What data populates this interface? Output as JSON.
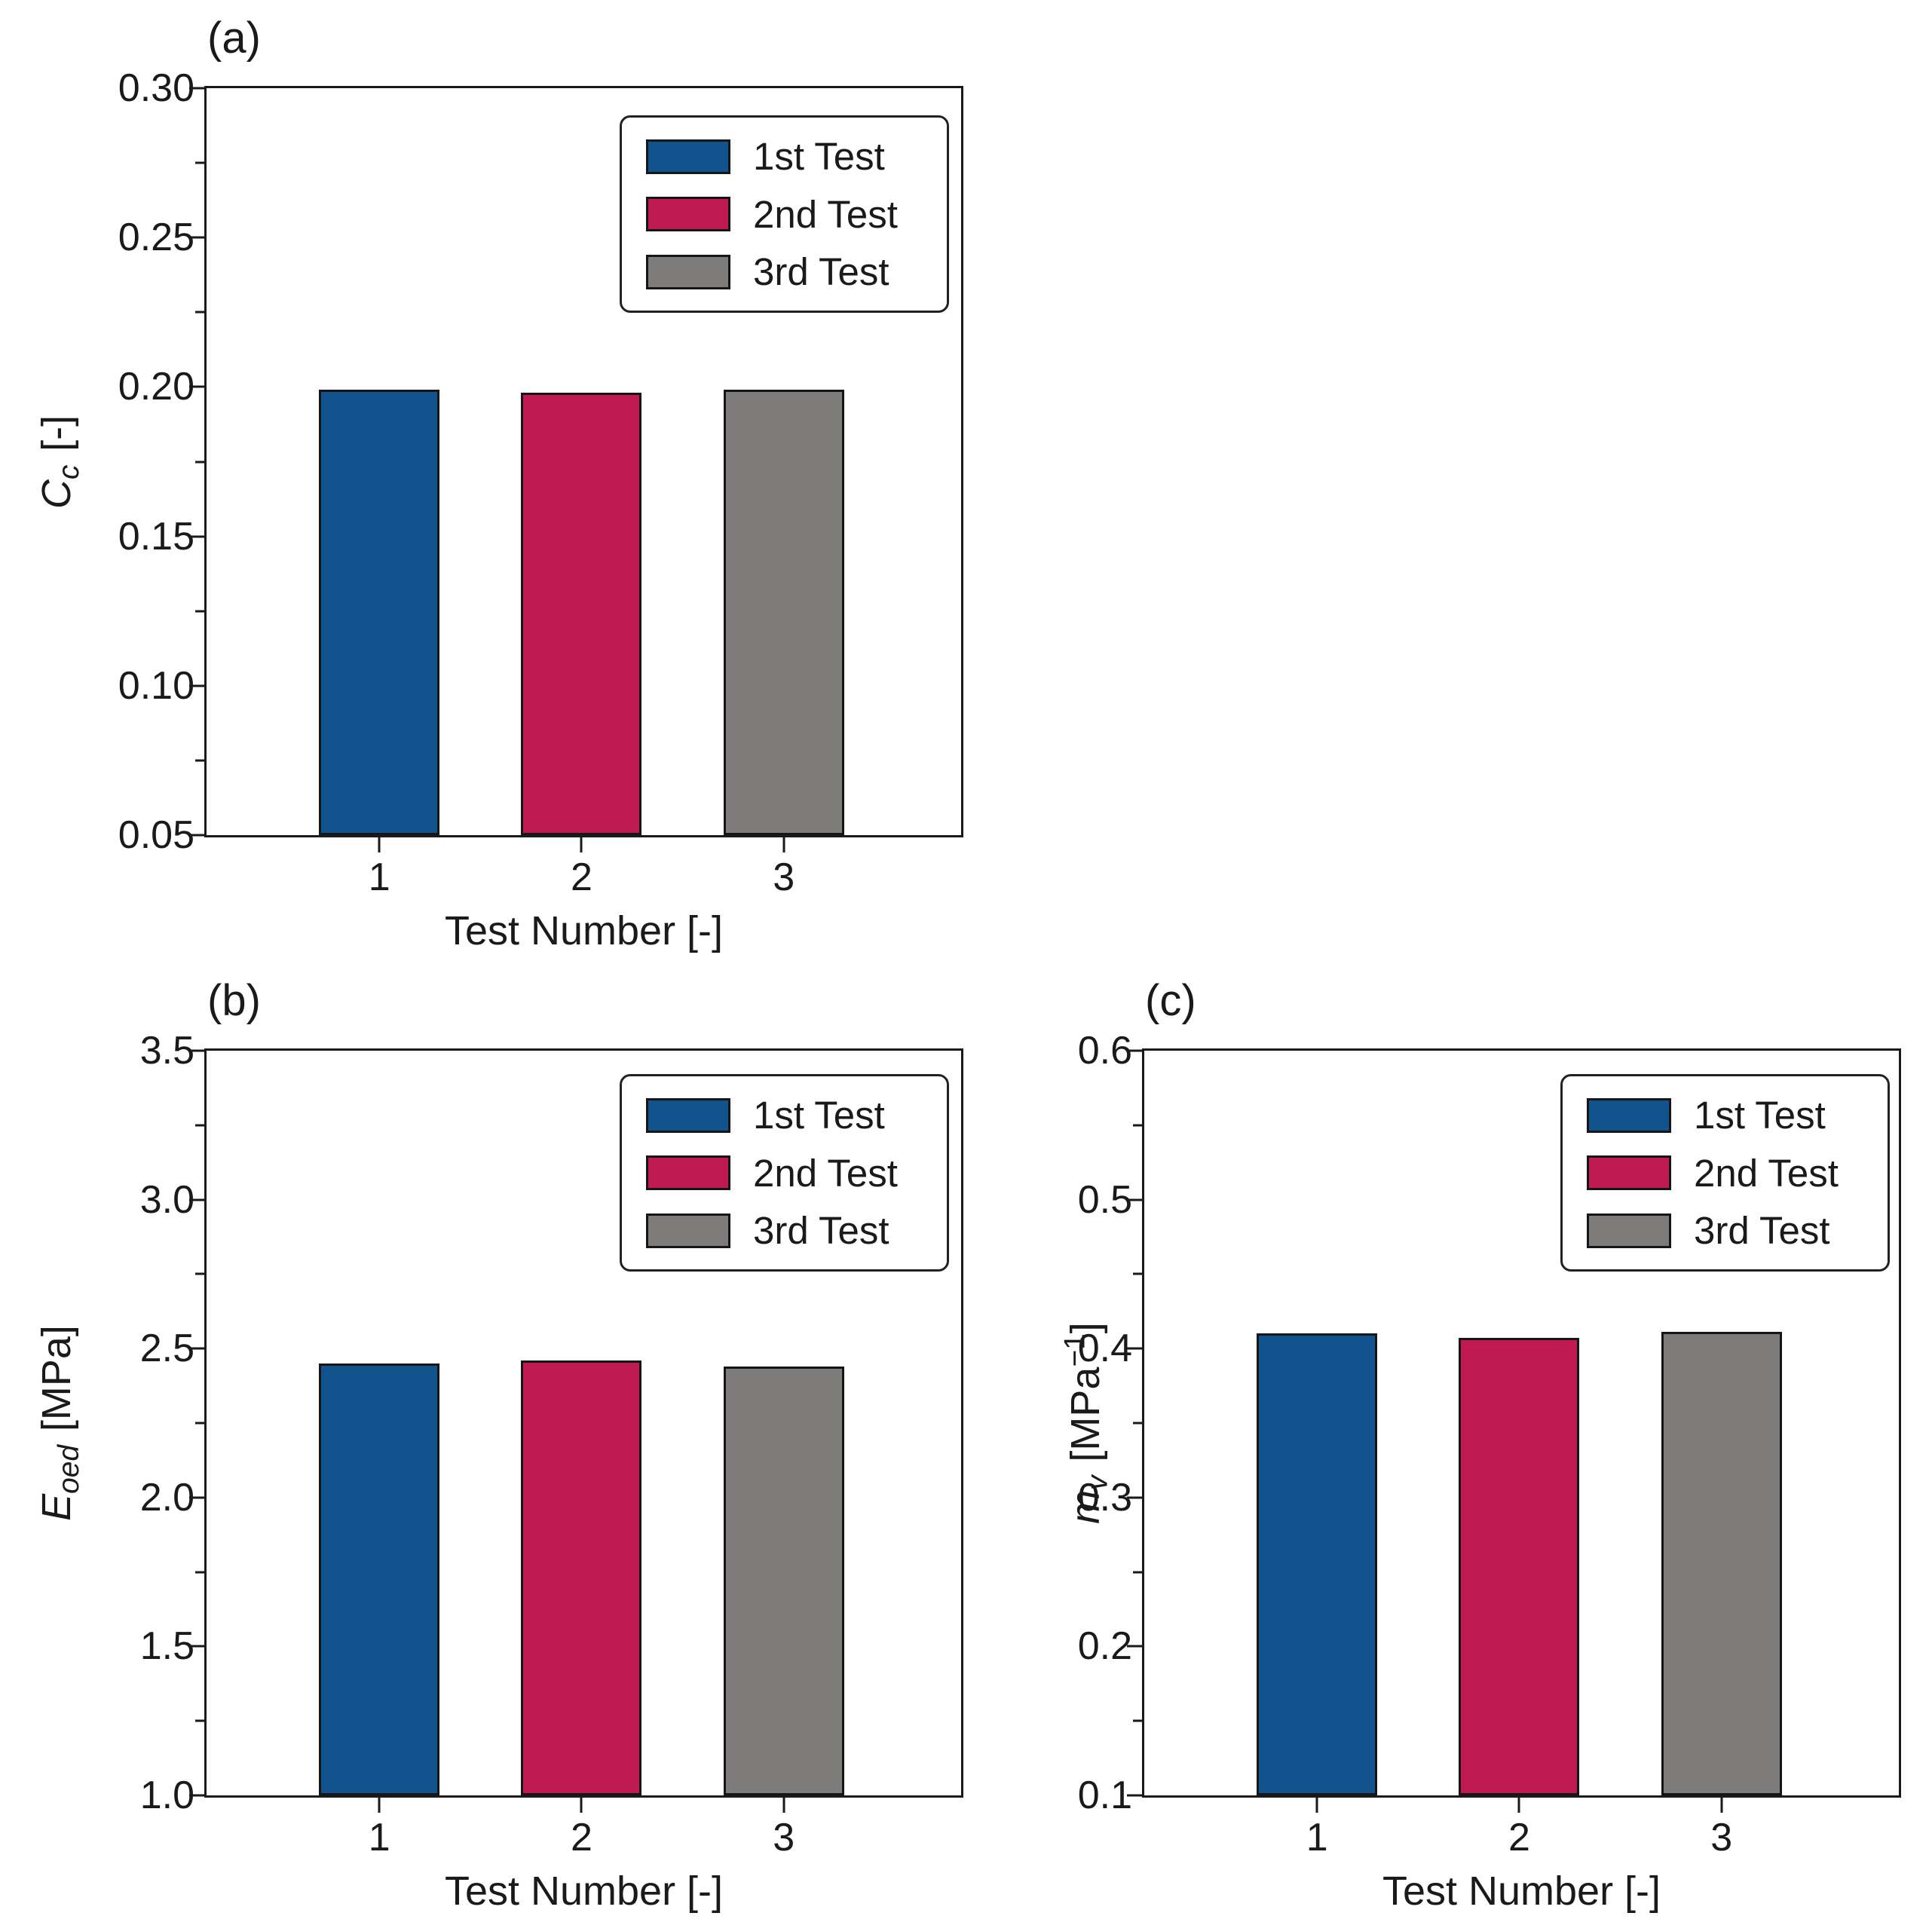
{
  "figure_background": "#ffffff",
  "text_color": "#1a1a1a",
  "chart_data": [
    {
      "panel_label": "(a)",
      "type": "bar",
      "xlabel": "Test Number [-]",
      "ylabel": {
        "symbol": "C",
        "subscript": "c",
        "unit_prefix": "[-]",
        "unit_sup": "",
        "unit_suffix": ""
      },
      "categories": [
        "1",
        "2",
        "3"
      ],
      "yticks": [
        "0.30",
        "0.25",
        "0.20",
        "0.15",
        "0.10",
        "0.05"
      ],
      "ylim": [
        0.05,
        0.3
      ],
      "grid": false,
      "legend_position": "upper right",
      "series": [
        {
          "name": "1st Test",
          "value": 0.199,
          "color": "#13538D"
        },
        {
          "name": "2nd Test",
          "value": 0.198,
          "color": "#C01A52"
        },
        {
          "name": "3rd Test",
          "value": 0.199,
          "color": "#7E7B7B"
        }
      ]
    },
    {
      "panel_label": "(b)",
      "type": "bar",
      "xlabel": "Test Number [-]",
      "ylabel": {
        "symbol": "E",
        "subscript": "oed",
        "unit_prefix": "[MPa]",
        "unit_sup": "",
        "unit_suffix": ""
      },
      "categories": [
        "1",
        "2",
        "3"
      ],
      "yticks": [
        "3.5",
        "3.0",
        "2.5",
        "2.0",
        "1.5",
        "1.0"
      ],
      "ylim": [
        1.0,
        3.5
      ],
      "grid": false,
      "legend_position": "upper right",
      "series": [
        {
          "name": "1st Test",
          "value": 2.45,
          "color": "#13538D"
        },
        {
          "name": "2nd Test",
          "value": 2.46,
          "color": "#C01A52"
        },
        {
          "name": "3rd Test",
          "value": 2.44,
          "color": "#7E7B7B"
        }
      ]
    },
    {
      "panel_label": "(c)",
      "type": "bar",
      "xlabel": "Test Number [-]",
      "ylabel": {
        "symbol": "m",
        "subscript": "v",
        "unit_prefix": "[MPa",
        "unit_sup": "−1",
        "unit_suffix": "]"
      },
      "categories": [
        "1",
        "2",
        "3"
      ],
      "yticks": [
        "0.6",
        "0.5",
        "0.4",
        "0.3",
        "0.2",
        "0.1"
      ],
      "ylim": [
        0.1,
        0.6
      ],
      "grid": false,
      "legend_position": "upper right",
      "series": [
        {
          "name": "1st Test",
          "value": 0.41,
          "color": "#13538D"
        },
        {
          "name": "2nd Test",
          "value": 0.407,
          "color": "#C01A52"
        },
        {
          "name": "3rd Test",
          "value": 0.411,
          "color": "#7E7B7B"
        }
      ]
    }
  ]
}
